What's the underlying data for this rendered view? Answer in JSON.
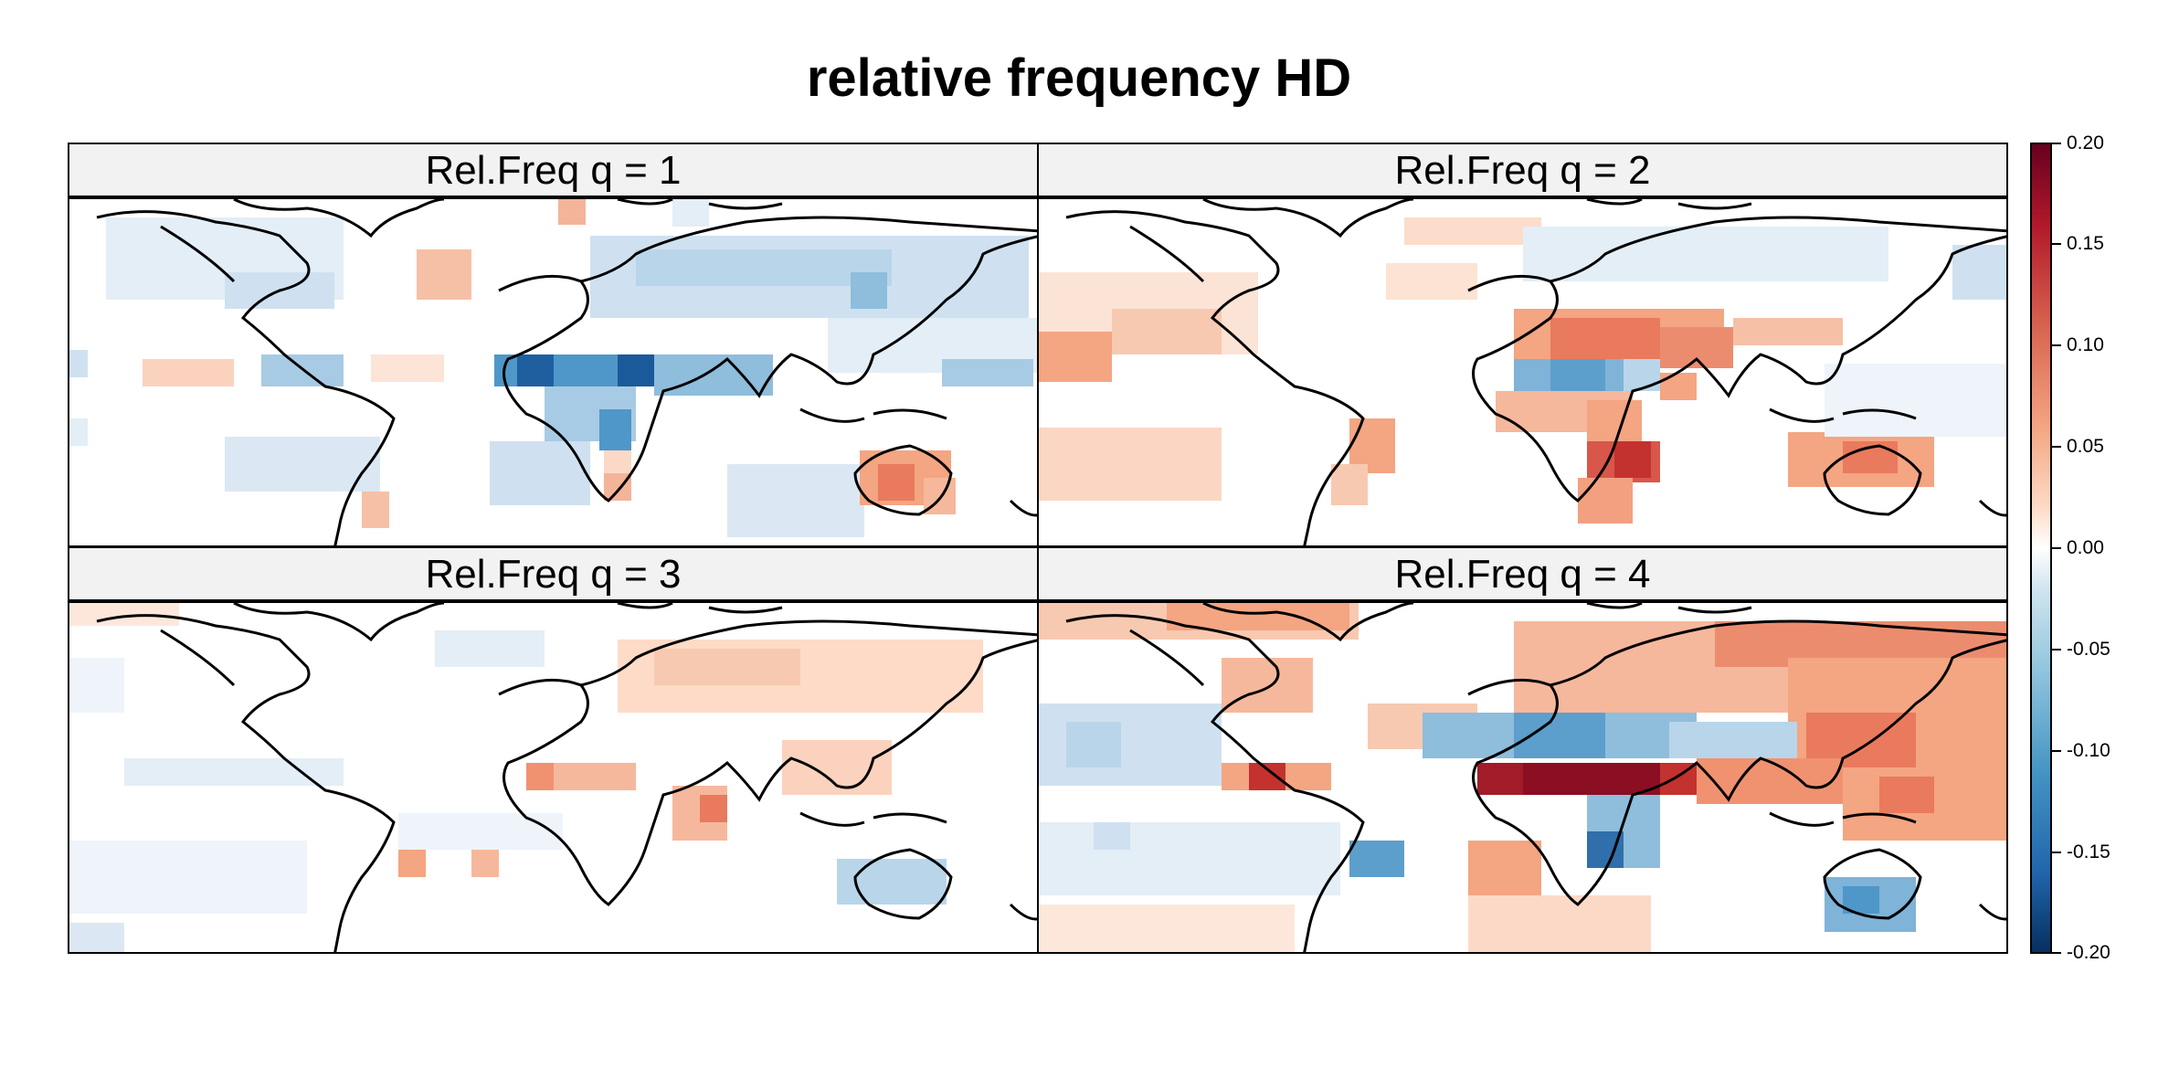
{
  "title": "relative frequency HD",
  "panels": [
    {
      "label": "Rel.Freq q = 1"
    },
    {
      "label": "Rel.Freq q = 2"
    },
    {
      "label": "Rel.Freq q = 3"
    },
    {
      "label": "Rel.Freq q = 4"
    }
  ],
  "colorkey": {
    "ticks": [
      "0.20",
      "0.15",
      "0.10",
      "0.05",
      "0.00",
      "-0.05",
      "-0.10",
      "-0.15",
      "-0.20"
    ],
    "range": [
      -0.2,
      0.2
    ],
    "palette": [
      "#053061",
      "#2166ac",
      "#4393c3",
      "#92c5de",
      "#d1e5f0",
      "#f7f7f7",
      "#fddbc7",
      "#f4a582",
      "#d6604d",
      "#b2182b",
      "#67001f"
    ]
  }
}
